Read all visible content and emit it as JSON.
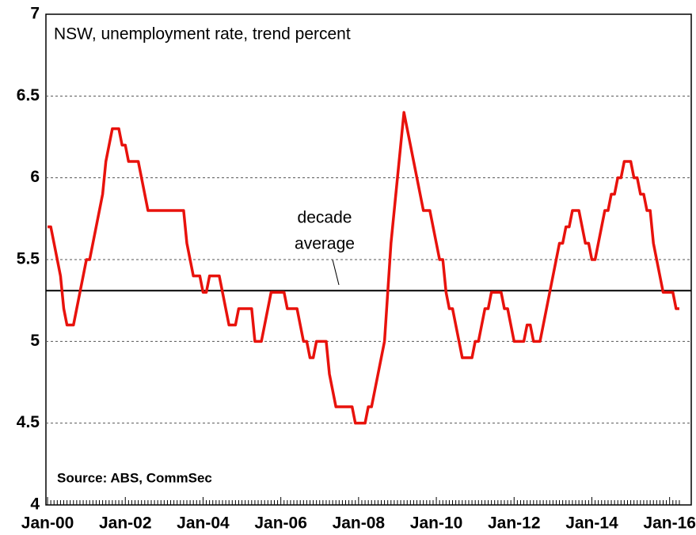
{
  "chart_data": {
    "type": "line",
    "title": "NSW, unemployment rate, trend percent",
    "source": "Source: ABS, CommSec",
    "annotation_lines": [
      "decade",
      "average"
    ],
    "reference_value": 5.31,
    "categories": [
      "Jan-00",
      null,
      null,
      null,
      null,
      null,
      null,
      null,
      null,
      null,
      null,
      null,
      null,
      null,
      null,
      null,
      null,
      null,
      null,
      null,
      null,
      null,
      null,
      null,
      "Jan-02",
      null,
      null,
      null,
      null,
      null,
      null,
      null,
      null,
      null,
      null,
      null,
      null,
      null,
      null,
      null,
      null,
      null,
      null,
      null,
      null,
      null,
      null,
      null,
      "Jan-04",
      null,
      null,
      null,
      null,
      null,
      null,
      null,
      null,
      null,
      null,
      null,
      null,
      null,
      null,
      null,
      null,
      null,
      null,
      null,
      null,
      null,
      null,
      null,
      "Jan-06",
      null,
      null,
      null,
      null,
      null,
      null,
      null,
      null,
      null,
      null,
      null,
      null,
      null,
      null,
      null,
      null,
      null,
      null,
      null,
      null,
      null,
      null,
      null,
      "Jan-08",
      null,
      null,
      null,
      null,
      null,
      null,
      null,
      null,
      null,
      null,
      null,
      null,
      null,
      null,
      null,
      null,
      null,
      null,
      null,
      null,
      null,
      null,
      null,
      "Jan-10",
      null,
      null,
      null,
      null,
      null,
      null,
      null,
      null,
      null,
      null,
      null,
      null,
      null,
      null,
      null,
      null,
      null,
      null,
      null,
      null,
      null,
      null,
      null,
      "Jan-12",
      null,
      null,
      null,
      null,
      null,
      null,
      null,
      null,
      null,
      null,
      null,
      null,
      null,
      null,
      null,
      null,
      null,
      null,
      null,
      null,
      null,
      null,
      null,
      "Jan-14",
      null,
      null,
      null,
      null,
      null,
      null,
      null,
      null,
      null,
      null,
      null,
      null,
      null,
      null,
      null,
      null,
      null,
      null,
      null,
      null,
      null,
      null,
      null,
      "Jan-16",
      null,
      null,
      null
    ],
    "series": [
      {
        "name": "NSW unemployment rate",
        "color": "#e8120c",
        "values": [
          5.7,
          5.7,
          5.6,
          5.5,
          5.4,
          5.2,
          5.1,
          5.1,
          5.1,
          5.2,
          5.3,
          5.4,
          5.5,
          5.5,
          5.6,
          5.7,
          5.8,
          5.9,
          6.1,
          6.2,
          6.3,
          6.3,
          6.3,
          6.2,
          6.2,
          6.1,
          6.1,
          6.1,
          6.1,
          6.0,
          5.9,
          5.8,
          5.8,
          5.8,
          5.8,
          5.8,
          5.8,
          5.8,
          5.8,
          5.8,
          5.8,
          5.8,
          5.8,
          5.6,
          5.5,
          5.4,
          5.4,
          5.4,
          5.3,
          5.3,
          5.4,
          5.4,
          5.4,
          5.4,
          5.3,
          5.2,
          5.1,
          5.1,
          5.1,
          5.2,
          5.2,
          5.2,
          5.2,
          5.2,
          5.0,
          5.0,
          5.0,
          5.1,
          5.2,
          5.3,
          5.3,
          5.3,
          5.3,
          5.3,
          5.2,
          5.2,
          5.2,
          5.2,
          5.1,
          5.0,
          5.0,
          4.9,
          4.9,
          5.0,
          5.0,
          5.0,
          5.0,
          4.8,
          4.7,
          4.6,
          4.6,
          4.6,
          4.6,
          4.6,
          4.6,
          4.5,
          4.5,
          4.5,
          4.5,
          4.6,
          4.6,
          4.7,
          4.8,
          4.9,
          5.0,
          5.3,
          5.6,
          5.8,
          6.0,
          6.2,
          6.4,
          6.3,
          6.2,
          6.1,
          6.0,
          5.9,
          5.8,
          5.8,
          5.8,
          5.7,
          5.6,
          5.5,
          5.5,
          5.3,
          5.2,
          5.2,
          5.1,
          5.0,
          4.9,
          4.9,
          4.9,
          4.9,
          5.0,
          5.0,
          5.1,
          5.2,
          5.2,
          5.3,
          5.3,
          5.3,
          5.3,
          5.2,
          5.2,
          5.1,
          5.0,
          5.0,
          5.0,
          5.0,
          5.1,
          5.1,
          5.0,
          5.0,
          5.0,
          5.1,
          5.2,
          5.3,
          5.4,
          5.5,
          5.6,
          5.6,
          5.7,
          5.7,
          5.8,
          5.8,
          5.8,
          5.7,
          5.6,
          5.6,
          5.5,
          5.5,
          5.6,
          5.7,
          5.8,
          5.8,
          5.9,
          5.9,
          6.0,
          6.0,
          6.1,
          6.1,
          6.1,
          6.0,
          6.0,
          5.9,
          5.9,
          5.8,
          5.8,
          5.6,
          5.5,
          5.4,
          5.3,
          5.3,
          5.3,
          5.3,
          5.2,
          5.2
        ]
      }
    ],
    "ylim": [
      4,
      7
    ],
    "yticks": [
      4,
      4.5,
      5,
      5.5,
      6,
      6.5,
      7
    ],
    "grid": true
  }
}
